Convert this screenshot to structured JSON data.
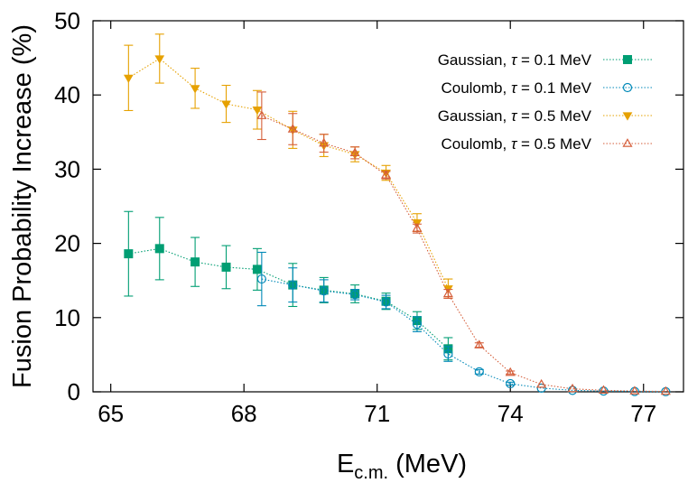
{
  "chart_data": {
    "type": "scatter",
    "xlabel_main": "E",
    "xlabel_sub": "c.m.",
    "xlabel_unit": "(MeV)",
    "ylabel": "Fusion Probability Increase (%)",
    "xlim": [
      64.6,
      77.9
    ],
    "ylim": [
      0,
      50
    ],
    "xticks": [
      65,
      68,
      71,
      74,
      77
    ],
    "yticks": [
      0,
      10,
      20,
      30,
      40,
      50
    ],
    "grid": false,
    "legend_position": "top-right",
    "series": [
      {
        "name_prefix": "Gaussian, ",
        "tau_symbol": "τ",
        "name_suffix": " = 0.1 MeV",
        "marker": "square",
        "color": "#009e73",
        "x": [
          65.4,
          66.1,
          66.9,
          67.6,
          68.3,
          69.1,
          69.8,
          70.5,
          71.2,
          71.9,
          72.6
        ],
        "y": [
          18.6,
          19.3,
          17.5,
          16.8,
          16.5,
          14.4,
          13.7,
          13.2,
          12.2,
          9.6,
          5.8
        ],
        "err": [
          5.7,
          4.2,
          3.3,
          2.9,
          2.8,
          2.9,
          1.7,
          1.2,
          1.1,
          1.2,
          1.5
        ]
      },
      {
        "name_prefix": "Coulomb, ",
        "tau_symbol": "τ",
        "name_suffix": " = 0.1 MeV",
        "marker": "circle",
        "color": "#0089b8",
        "x": [
          68.4,
          69.1,
          69.8,
          70.5,
          71.2,
          71.9,
          72.6,
          73.3,
          74.0,
          74.7,
          75.4,
          76.1,
          76.8,
          77.5
        ],
        "y": [
          15.2,
          14.4,
          13.6,
          13.1,
          12.1,
          9.1,
          5.1,
          2.7,
          1.1,
          0.5,
          0.2,
          0.1,
          0.05,
          0.02
        ],
        "err": [
          3.6,
          2.3,
          1.5,
          0.7,
          0.9,
          1.0,
          1.0,
          0.3,
          0.2,
          0.1,
          0.05,
          0.02,
          0.01,
          0.01
        ]
      },
      {
        "name_prefix": "Gaussian, ",
        "tau_symbol": "τ",
        "name_suffix": " = 0.5 MeV",
        "marker": "triangle-down",
        "color": "#e6a100",
        "x": [
          65.4,
          66.1,
          66.9,
          67.6,
          68.3,
          69.1,
          69.8,
          70.5,
          71.2,
          71.9,
          72.6
        ],
        "y": [
          42.3,
          44.9,
          40.9,
          38.8,
          38.0,
          35.3,
          33.2,
          32.0,
          29.5,
          22.8,
          13.9
        ],
        "err": [
          4.4,
          3.3,
          2.7,
          2.5,
          2.6,
          2.5,
          1.5,
          1.0,
          1.0,
          1.2,
          1.3
        ]
      },
      {
        "name_prefix": "Coulomb, ",
        "tau_symbol": "τ",
        "name_suffix": " = 0.5 MeV",
        "marker": "triangle-up",
        "color": "#d55e3a",
        "x": [
          68.4,
          69.1,
          69.8,
          70.5,
          71.2,
          71.9,
          72.6,
          73.3,
          74.0,
          74.7,
          75.4,
          76.1,
          76.8,
          77.5
        ],
        "y": [
          37.2,
          35.4,
          33.5,
          32.2,
          29.2,
          22.0,
          13.2,
          6.3,
          2.6,
          1.0,
          0.4,
          0.2,
          0.1,
          0.05
        ],
        "err": [
          3.2,
          2.1,
          1.2,
          0.8,
          0.5,
          0.6,
          0.6,
          0.3,
          0.2,
          0.1,
          0.05,
          0.02,
          0.01,
          0.01
        ]
      }
    ]
  }
}
